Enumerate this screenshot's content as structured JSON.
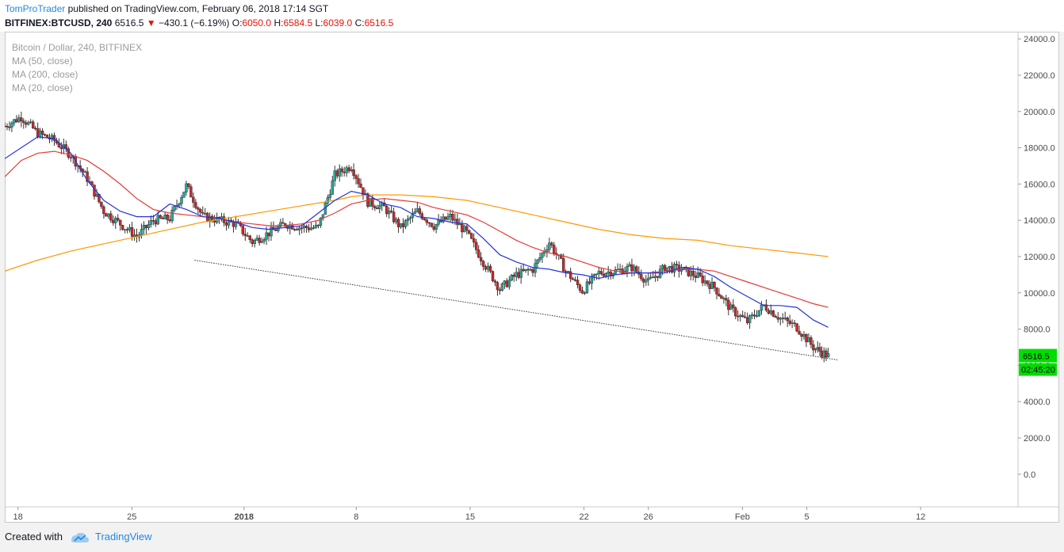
{
  "header": {
    "author": "TomProTrader",
    "published": "published on TradingView.com, February 06, 2018 17:14 SGT",
    "symbol": "BITFINEX:BTCUSD, 240",
    "last": "6516.5",
    "change": "−430.1 (−6.19%)",
    "o_label": "O:",
    "o": "6050.0",
    "h_label": "H:",
    "h": "6584.5",
    "l_label": "L:",
    "l": "6039.0",
    "c_label": "C:",
    "c": "6516.5"
  },
  "legend": {
    "title": "Bitcoin / Dollar, 240, BITFINEX",
    "ma50": "MA (50, close)",
    "ma200": "MA (200, close)",
    "ma20": "MA (20, close)"
  },
  "footer": {
    "created": "Created with",
    "brand": "TradingView"
  },
  "colors": {
    "up": "#26a69a",
    "down": "#c62828",
    "ma50": "#e53935",
    "ma200": "#ff9800",
    "ma20": "#2233dd",
    "price_tag": "#00dd00"
  },
  "chart_data": {
    "type": "candlestick",
    "title": "Bitcoin / Dollar, 240, BITFINEX",
    "y_ticks": [
      "24000.0",
      "22000.0",
      "20000.0",
      "18000.0",
      "16000.0",
      "14000.0",
      "12000.0",
      "10000.0",
      "8000.0",
      "6000.0",
      "4000.0",
      "2000.0",
      "0.0"
    ],
    "y_tick_values": [
      24000,
      22000,
      20000,
      18000,
      16000,
      14000,
      12000,
      10000,
      8000,
      6000,
      4000,
      2000,
      0
    ],
    "ylim": [
      -1800,
      24400
    ],
    "x_ticks": [
      {
        "label": "18",
        "x": 0.8
      },
      {
        "label": "25",
        "x": 7.7
      },
      {
        "label": "2018",
        "x": 14.5
      },
      {
        "label": "8",
        "x": 21.3
      },
      {
        "label": "15",
        "x": 28.2
      },
      {
        "label": "22",
        "x": 35.1
      },
      {
        "label": "26",
        "x": 39.0
      },
      {
        "label": "Feb",
        "x": 44.7
      },
      {
        "label": "5",
        "x": 48.6
      },
      {
        "label": "12",
        "x": 55.5
      }
    ],
    "xlim": [
      0,
      61.4
    ],
    "last_price": "6516.5",
    "last_price_value": 6516.5,
    "countdown": "02:45:20",
    "closes": [
      [
        0,
        19200
      ],
      [
        1,
        19700
      ],
      [
        2,
        18800
      ],
      [
        3,
        18400
      ],
      [
        4,
        17600
      ],
      [
        5,
        16300
      ],
      [
        6,
        14500
      ],
      [
        7,
        13800
      ],
      [
        8,
        13100
      ],
      [
        9,
        14000
      ],
      [
        10,
        14100
      ],
      [
        11,
        15900
      ],
      [
        12,
        14200
      ],
      [
        13,
        14000
      ],
      [
        14,
        13800
      ],
      [
        15,
        12800
      ],
      [
        16,
        13300
      ],
      [
        17,
        13800
      ],
      [
        18,
        13600
      ],
      [
        19,
        13600
      ],
      [
        20,
        16500
      ],
      [
        21,
        17000
      ],
      [
        22,
        15000
      ],
      [
        23,
        14700
      ],
      [
        24,
        13600
      ],
      [
        25,
        14500
      ],
      [
        26,
        13700
      ],
      [
        27,
        14200
      ],
      [
        28,
        13300
      ],
      [
        29,
        11700
      ],
      [
        30,
        10200
      ],
      [
        31,
        11000
      ],
      [
        32,
        11300
      ],
      [
        33,
        12800
      ],
      [
        34,
        11200
      ],
      [
        35,
        10100
      ],
      [
        36,
        11100
      ],
      [
        37,
        11200
      ],
      [
        38,
        11400
      ],
      [
        39,
        10600
      ],
      [
        40,
        11400
      ],
      [
        41,
        11300
      ],
      [
        42,
        10900
      ],
      [
        43,
        10300
      ],
      [
        44,
        9100
      ],
      [
        45,
        8400
      ],
      [
        46,
        9300
      ],
      [
        47,
        8600
      ],
      [
        48,
        8100
      ],
      [
        49,
        7000
      ],
      [
        49.9,
        6516.5
      ]
    ],
    "ma20": [
      [
        0,
        17400
      ],
      [
        2,
        18600
      ],
      [
        3,
        18500
      ],
      [
        4,
        17700
      ],
      [
        5,
        16200
      ],
      [
        6,
        15100
      ],
      [
        7,
        14500
      ],
      [
        8,
        14200
      ],
      [
        9,
        14200
      ],
      [
        10,
        14900
      ],
      [
        11,
        14600
      ],
      [
        12,
        14200
      ],
      [
        13,
        14100
      ],
      [
        14,
        13900
      ],
      [
        15,
        13600
      ],
      [
        16,
        13500
      ],
      [
        17,
        13600
      ],
      [
        18,
        13700
      ],
      [
        19,
        14400
      ],
      [
        20,
        15100
      ],
      [
        21,
        15600
      ],
      [
        22,
        15400
      ],
      [
        23,
        14900
      ],
      [
        24,
        14700
      ],
      [
        25,
        14200
      ],
      [
        26,
        14100
      ],
      [
        27,
        13900
      ],
      [
        28,
        13800
      ],
      [
        29,
        13000
      ],
      [
        30,
        12100
      ],
      [
        31,
        11700
      ],
      [
        32,
        11400
      ],
      [
        33,
        11300
      ],
      [
        34,
        11100
      ],
      [
        35,
        11000
      ],
      [
        36,
        10800
      ],
      [
        37,
        11000
      ],
      [
        38,
        11100
      ],
      [
        39,
        11100
      ],
      [
        40,
        11100
      ],
      [
        41,
        11400
      ],
      [
        42,
        11300
      ],
      [
        43,
        10900
      ],
      [
        44,
        10300
      ],
      [
        45,
        9800
      ],
      [
        46,
        9300
      ],
      [
        47,
        9300
      ],
      [
        48,
        9200
      ],
      [
        49,
        8500
      ],
      [
        49.9,
        8100
      ]
    ],
    "ma50": [
      [
        0,
        16400
      ],
      [
        1,
        17300
      ],
      [
        2,
        17700
      ],
      [
        3,
        17800
      ],
      [
        4,
        17600
      ],
      [
        5,
        17300
      ],
      [
        6,
        16700
      ],
      [
        7,
        16000
      ],
      [
        8,
        15200
      ],
      [
        9,
        14600
      ],
      [
        10,
        14400
      ],
      [
        11,
        14300
      ],
      [
        12,
        14200
      ],
      [
        13,
        14100
      ],
      [
        14,
        13900
      ],
      [
        15,
        13800
      ],
      [
        16,
        13700
      ],
      [
        17,
        13700
      ],
      [
        18,
        13800
      ],
      [
        19,
        14000
      ],
      [
        20,
        14400
      ],
      [
        21,
        14900
      ],
      [
        22,
        15100
      ],
      [
        23,
        15200
      ],
      [
        24,
        15100
      ],
      [
        25,
        15000
      ],
      [
        26,
        14700
      ],
      [
        27,
        14500
      ],
      [
        28,
        14300
      ],
      [
        29,
        13900
      ],
      [
        30,
        13400
      ],
      [
        31,
        12900
      ],
      [
        32,
        12500
      ],
      [
        33,
        12200
      ],
      [
        34,
        12000
      ],
      [
        35,
        11700
      ],
      [
        36,
        11400
      ],
      [
        37,
        11200
      ],
      [
        38,
        11100
      ],
      [
        39,
        11100
      ],
      [
        40,
        11200
      ],
      [
        41,
        11300
      ],
      [
        42,
        11300
      ],
      [
        43,
        11200
      ],
      [
        44,
        10900
      ],
      [
        45,
        10600
      ],
      [
        46,
        10300
      ],
      [
        47,
        10000
      ],
      [
        48,
        9700
      ],
      [
        49,
        9400
      ],
      [
        49.9,
        9200
      ]
    ],
    "ma200": [
      [
        0,
        11200
      ],
      [
        2,
        11800
      ],
      [
        4,
        12300
      ],
      [
        6,
        12700
      ],
      [
        8,
        13100
      ],
      [
        10,
        13500
      ],
      [
        12,
        13900
      ],
      [
        14,
        14200
      ],
      [
        16,
        14500
      ],
      [
        18,
        14800
      ],
      [
        20,
        15100
      ],
      [
        21,
        15300
      ],
      [
        22,
        15400
      ],
      [
        24,
        15400
      ],
      [
        26,
        15300
      ],
      [
        28,
        15100
      ],
      [
        30,
        14700
      ],
      [
        32,
        14300
      ],
      [
        34,
        13900
      ],
      [
        36,
        13500
      ],
      [
        38,
        13200
      ],
      [
        40,
        13000
      ],
      [
        42,
        12900
      ],
      [
        44,
        12600
      ],
      [
        46,
        12400
      ],
      [
        48,
        12200
      ],
      [
        49.9,
        12000
      ]
    ],
    "trendline": [
      [
        11.5,
        11800
      ],
      [
        50.5,
        6300
      ]
    ]
  }
}
